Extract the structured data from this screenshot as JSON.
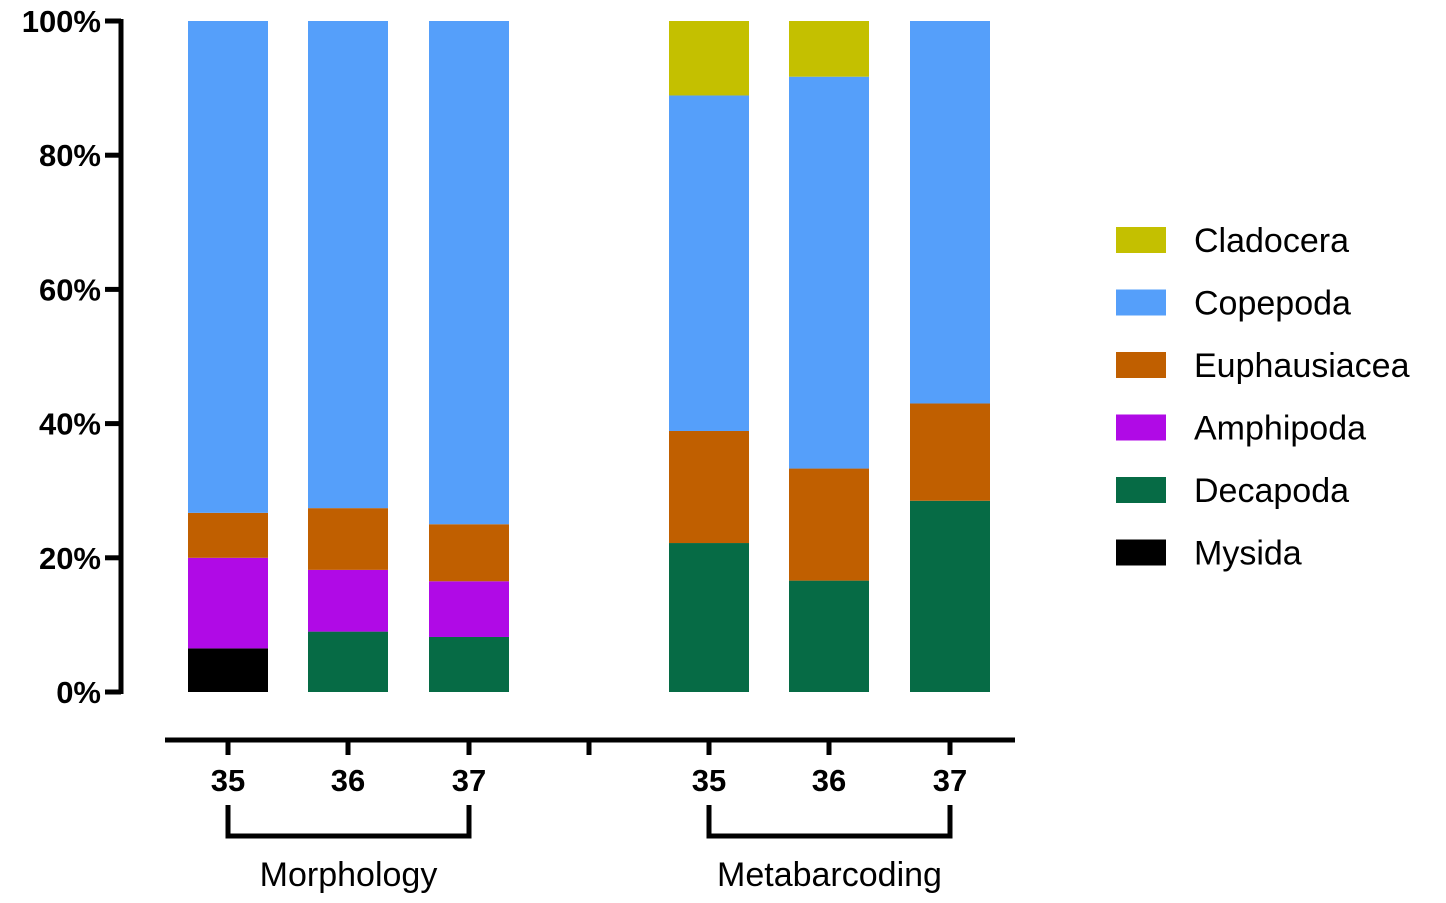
{
  "chart_data": {
    "type": "bar",
    "stacked": true,
    "title": "",
    "xlabel": "",
    "ylabel": "",
    "ylim": [
      0,
      100
    ],
    "y_ticks": [
      "0%",
      "20%",
      "40%",
      "60%",
      "80%",
      "100%"
    ],
    "grid": false,
    "legend_position": "right",
    "categories": [
      "35",
      "36",
      "37",
      "35",
      "36",
      "37"
    ],
    "groups": [
      {
        "label": "Morphology",
        "members": [
          0,
          1,
          2
        ]
      },
      {
        "label": "Metabarcoding",
        "members": [
          3,
          4,
          5
        ]
      }
    ],
    "series": [
      {
        "name": "Mysida",
        "color": "#000000",
        "values": [
          6.5,
          0,
          0,
          0,
          0,
          0
        ]
      },
      {
        "name": "Decapoda",
        "color": "#066b45",
        "values": [
          0,
          9,
          8.2,
          22.2,
          16.6,
          28.5
        ]
      },
      {
        "name": "Amphipoda",
        "color": "#b00ae6",
        "values": [
          13.5,
          9.2,
          8.3,
          0,
          0,
          0
        ]
      },
      {
        "name": "Euphausiacea",
        "color": "#c05f00",
        "values": [
          6.7,
          9.2,
          8.5,
          16.7,
          16.7,
          14.5
        ]
      },
      {
        "name": "Copepoda",
        "color": "#559ffa",
        "values": [
          73.3,
          72.6,
          75,
          50,
          58.4,
          57
        ]
      },
      {
        "name": "Cladocera",
        "color": "#c4c000",
        "values": [
          0,
          0,
          0,
          11.1,
          8.3,
          0
        ]
      }
    ],
    "legend_order": [
      "Cladocera",
      "Copepoda",
      "Euphausiacea",
      "Amphipoda",
      "Decapoda",
      "Mysida"
    ]
  }
}
